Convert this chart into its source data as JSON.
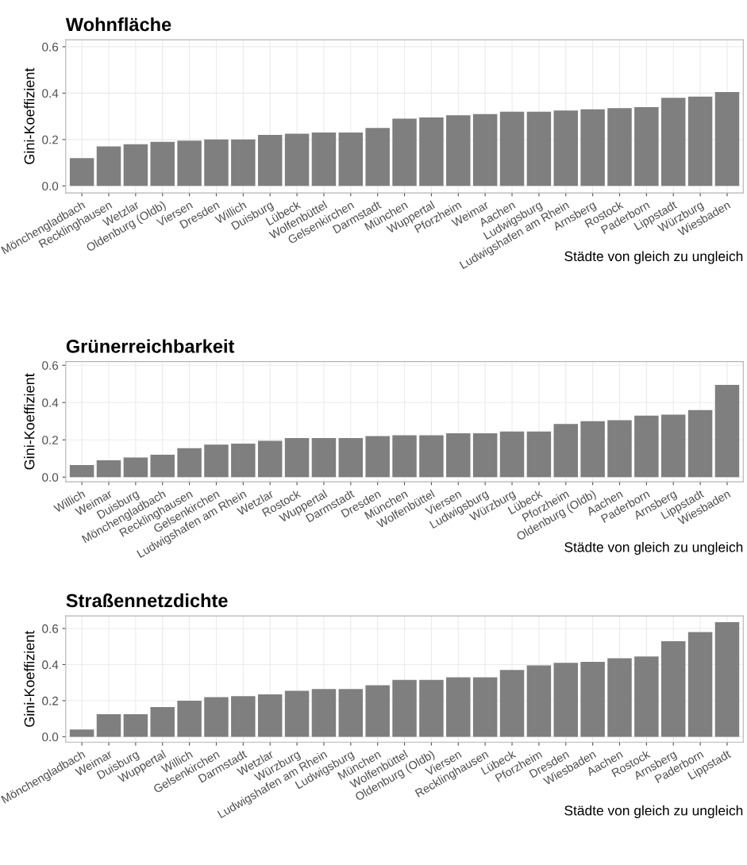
{
  "chart_data": [
    {
      "type": "bar",
      "title": "Wohnfläche",
      "xlabel": "Städte von gleich zu ungleich",
      "ylabel": "Gini-Koeffizient",
      "color": "#7f7f7f",
      "grid": true,
      "legend": false,
      "categories": [
        "Mönchengladbach",
        "Recklinghausen",
        "Wetzlar",
        "Oldenburg (Oldb)",
        "Viersen",
        "Dresden",
        "Willich",
        "Duisburg",
        "Lübeck",
        "Wolfenbüttel",
        "Gelsenkirchen",
        "Darmstadt",
        "München",
        "Wuppertal",
        "Pforzheim",
        "Weimar",
        "Aachen",
        "Ludwigsburg",
        "Ludwigshafen am Rhein",
        "Arnsberg",
        "Rostock",
        "Paderborn",
        "Lippstadt",
        "Würzburg",
        "Wiesbaden"
      ],
      "values": [
        0.12,
        0.17,
        0.18,
        0.19,
        0.195,
        0.2,
        0.2,
        0.22,
        0.225,
        0.23,
        0.23,
        0.25,
        0.29,
        0.295,
        0.305,
        0.31,
        0.32,
        0.32,
        0.325,
        0.33,
        0.335,
        0.34,
        0.38,
        0.385,
        0.405
      ],
      "ylim": [
        -0.03,
        0.63
      ],
      "yticks": [
        {
          "value": 0,
          "label": "0.0"
        },
        {
          "value": 0.2,
          "label": "0.2"
        },
        {
          "value": 0.4,
          "label": "0.4"
        },
        {
          "value": 0.6,
          "label": "0.6"
        }
      ]
    },
    {
      "type": "bar",
      "title": "Grünerreichbarkeit",
      "xlabel": "Städte von gleich zu ungleich",
      "ylabel": "Gini-Koeffizient",
      "color": "#7f7f7f",
      "grid": true,
      "legend": false,
      "categories": [
        "Willich",
        "Weimar",
        "Duisburg",
        "Mönchengladbach",
        "Recklinghausen",
        "Gelsenkirchen",
        "Ludwigshafen am Rhein",
        "Wetzlar",
        "Rostock",
        "Wuppertal",
        "Darmstadt",
        "Dresden",
        "München",
        "Wolfenbüttel",
        "Viersen",
        "Ludwigsburg",
        "Würzburg",
        "Lübeck",
        "Pforzheim",
        "Oldenburg (Oldb)",
        "Aachen",
        "Paderborn",
        "Arnsberg",
        "Lippstadt",
        "Wiesbaden"
      ],
      "values": [
        0.065,
        0.09,
        0.105,
        0.12,
        0.155,
        0.175,
        0.18,
        0.195,
        0.21,
        0.21,
        0.21,
        0.22,
        0.225,
        0.225,
        0.235,
        0.235,
        0.245,
        0.245,
        0.285,
        0.3,
        0.305,
        0.33,
        0.335,
        0.36,
        0.495
      ],
      "ylim": [
        -0.025,
        0.62
      ],
      "yticks": [
        {
          "value": 0,
          "label": "0.0"
        },
        {
          "value": 0.2,
          "label": "0.2"
        },
        {
          "value": 0.4,
          "label": "0.4"
        },
        {
          "value": 0.6,
          "label": "0.6"
        }
      ]
    },
    {
      "type": "bar",
      "title": "Straßennetzdichte",
      "xlabel": "Städte von gleich zu ungleich",
      "ylabel": "Gini-Koeffizient",
      "color": "#7f7f7f",
      "grid": true,
      "legend": false,
      "categories": [
        "Mönchengladbach",
        "Weimar",
        "Duisburg",
        "Wuppertal",
        "Willich",
        "Gelsenkirchen",
        "Darmstadt",
        "Wetzlar",
        "Würzburg",
        "Ludwigshafen am Rhein",
        "Ludwigsburg",
        "München",
        "Wolfenbüttel",
        "Oldenburg (Oldb)",
        "Viersen",
        "Recklinghausen",
        "Lübeck",
        "Pforzheim",
        "Dresden",
        "Wiesbaden",
        "Aachen",
        "Rostock",
        "Arnsberg",
        "Paderborn",
        "Lippstadt"
      ],
      "values": [
        0.04,
        0.125,
        0.125,
        0.165,
        0.2,
        0.22,
        0.225,
        0.235,
        0.255,
        0.265,
        0.265,
        0.285,
        0.315,
        0.315,
        0.33,
        0.33,
        0.37,
        0.395,
        0.41,
        0.415,
        0.435,
        0.445,
        0.53,
        0.58,
        0.635
      ],
      "ylim": [
        -0.03,
        0.67
      ],
      "yticks": [
        {
          "value": 0,
          "label": "0.0"
        },
        {
          "value": 0.2,
          "label": "0.2"
        },
        {
          "value": 0.4,
          "label": "0.4"
        },
        {
          "value": 0.6,
          "label": "0.6"
        }
      ]
    }
  ]
}
